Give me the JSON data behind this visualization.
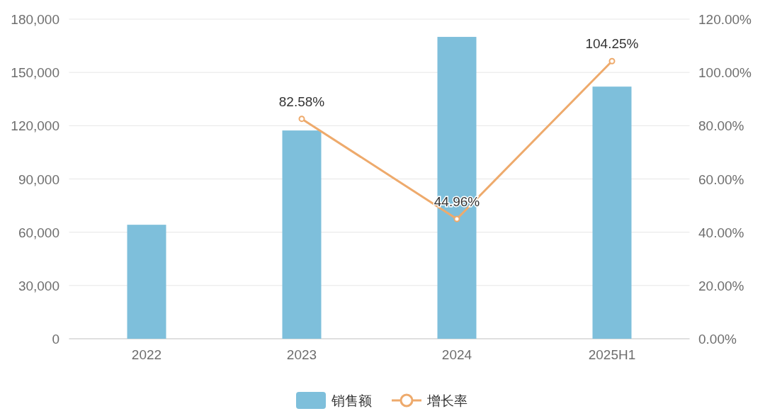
{
  "chart_data": {
    "type": "bar",
    "categories": [
      "2022",
      "2023",
      "2024",
      "2025H1"
    ],
    "series": [
      {
        "name": "销售额",
        "color": "#7ebfdb",
        "values": [
          64200,
          117300,
          170000,
          142000
        ]
      },
      {
        "name": "增长率",
        "type": "line",
        "axis": "y2",
        "color": "#eeaa6c",
        "values": [
          null,
          82.58,
          44.96,
          104.25
        ],
        "value_labels": [
          null,
          "82.58%",
          "44.96%",
          "104.25%"
        ]
      }
    ],
    "ylim": [
      0,
      180000
    ],
    "yticks": [
      {
        "value": 0,
        "label": "0"
      },
      {
        "value": 30000,
        "label": "30,000"
      },
      {
        "value": 60000,
        "label": "60,000"
      },
      {
        "value": 90000,
        "label": "90,000"
      },
      {
        "value": 120000,
        "label": "120,000"
      },
      {
        "value": 150000,
        "label": "150,000"
      },
      {
        "value": 180000,
        "label": "180,000"
      }
    ],
    "y2lim": [
      0,
      120
    ],
    "y2ticks": [
      {
        "value": 0,
        "label": "0.00%"
      },
      {
        "value": 20,
        "label": "20.00%"
      },
      {
        "value": 40,
        "label": "40.00%"
      },
      {
        "value": 60,
        "label": "60.00%"
      },
      {
        "value": 80,
        "label": "80.00%"
      },
      {
        "value": 100,
        "label": "100.00%"
      },
      {
        "value": 120,
        "label": "120.00%"
      }
    ],
    "grid": "y",
    "legend": "bottom",
    "marker": "circle"
  }
}
